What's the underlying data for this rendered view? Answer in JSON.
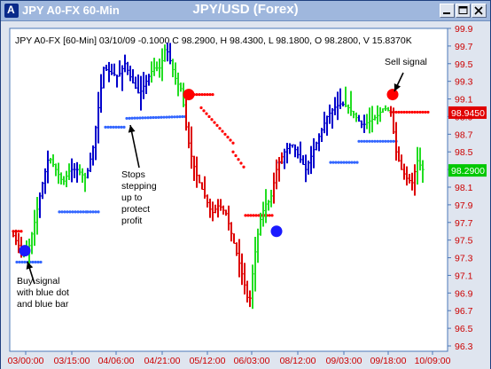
{
  "window": {
    "title": "JPY A0-FX 60-Min",
    "app_icon": "A"
  },
  "chart_data": {
    "type": "bar",
    "title": "JPY/USD (Forex)",
    "info_line": "JPY A0-FX [60-Min] 03/10/09  -0.1000 C 98.2900, H 98.4300, L 98.1800, O 98.2800, V 15.8370K",
    "x_tick_labels": [
      "03/00:00",
      "03/15:00",
      "04/06:00",
      "04/21:00",
      "05/12:00",
      "06/03:00",
      "08/12:00",
      "09/03:00",
      "09/18:00",
      "10/09:00"
    ],
    "y_tick_labels": [
      "99.9",
      "99.7",
      "99.5",
      "99.3",
      "99.1",
      "98.9",
      "98.7",
      "98.5",
      "98.3",
      "98.1",
      "97.9",
      "97.7",
      "97.5",
      "97.3",
      "97.1",
      "96.9",
      "96.7",
      "96.5",
      "96.3"
    ],
    "ylim": [
      96.3,
      99.9
    ],
    "price_tags": [
      {
        "value": 98.945,
        "label": "98.9450",
        "color": "#e00000"
      },
      {
        "value": 98.29,
        "label": "98.2900",
        "color": "#00c800"
      }
    ],
    "bar_series": [
      {
        "name": "uptrend",
        "color": "#0000cc"
      },
      {
        "name": "stopped",
        "color": "#22dd22"
      },
      {
        "name": "downtrend",
        "color": "#dd0000"
      }
    ],
    "stop_dots": [
      {
        "from": 97.25,
        "to": 97.25
      },
      {
        "from": 97.82,
        "to": 97.82
      },
      {
        "from": 98.42,
        "to": 98.42
      },
      {
        "from": 98.78,
        "to": 98.78
      },
      {
        "from": 98.88,
        "to": 98.9
      },
      {
        "from": 98.38,
        "to": 98.38
      },
      {
        "from": 98.62,
        "to": 98.62
      }
    ],
    "signals": [
      {
        "name": "buy-signal-dot",
        "price": 97.38,
        "color": "#1a1aff"
      },
      {
        "name": "sell-signal-dot",
        "price": 99.15,
        "color": "#ff0000"
      },
      {
        "name": "sell-dot-early",
        "price": 99.15,
        "color": "#ff0000"
      },
      {
        "name": "buy-dot-late",
        "price": 97.6,
        "color": "#1a1aff"
      }
    ],
    "annotations": [
      {
        "name": "buy-signal-note",
        "lines": [
          "Buy signal",
          "with blue dot",
          "and blue bar"
        ]
      },
      {
        "name": "stops-note",
        "lines": [
          "Stops",
          "stepping",
          "up to",
          "protect",
          "profit"
        ]
      },
      {
        "name": "sell-signal-note",
        "lines": [
          "Sell signal"
        ]
      }
    ]
  },
  "colors": {
    "title_bar": "#9fb7dd",
    "plot_border": "#4b78b8",
    "axis_text": "#cc0000",
    "uptrend": "#0000cc",
    "stopped": "#22dd22",
    "downtrend": "#dd0000",
    "stop_dots_blue": "#3366ff",
    "stop_dots_red": "#ff0000"
  }
}
